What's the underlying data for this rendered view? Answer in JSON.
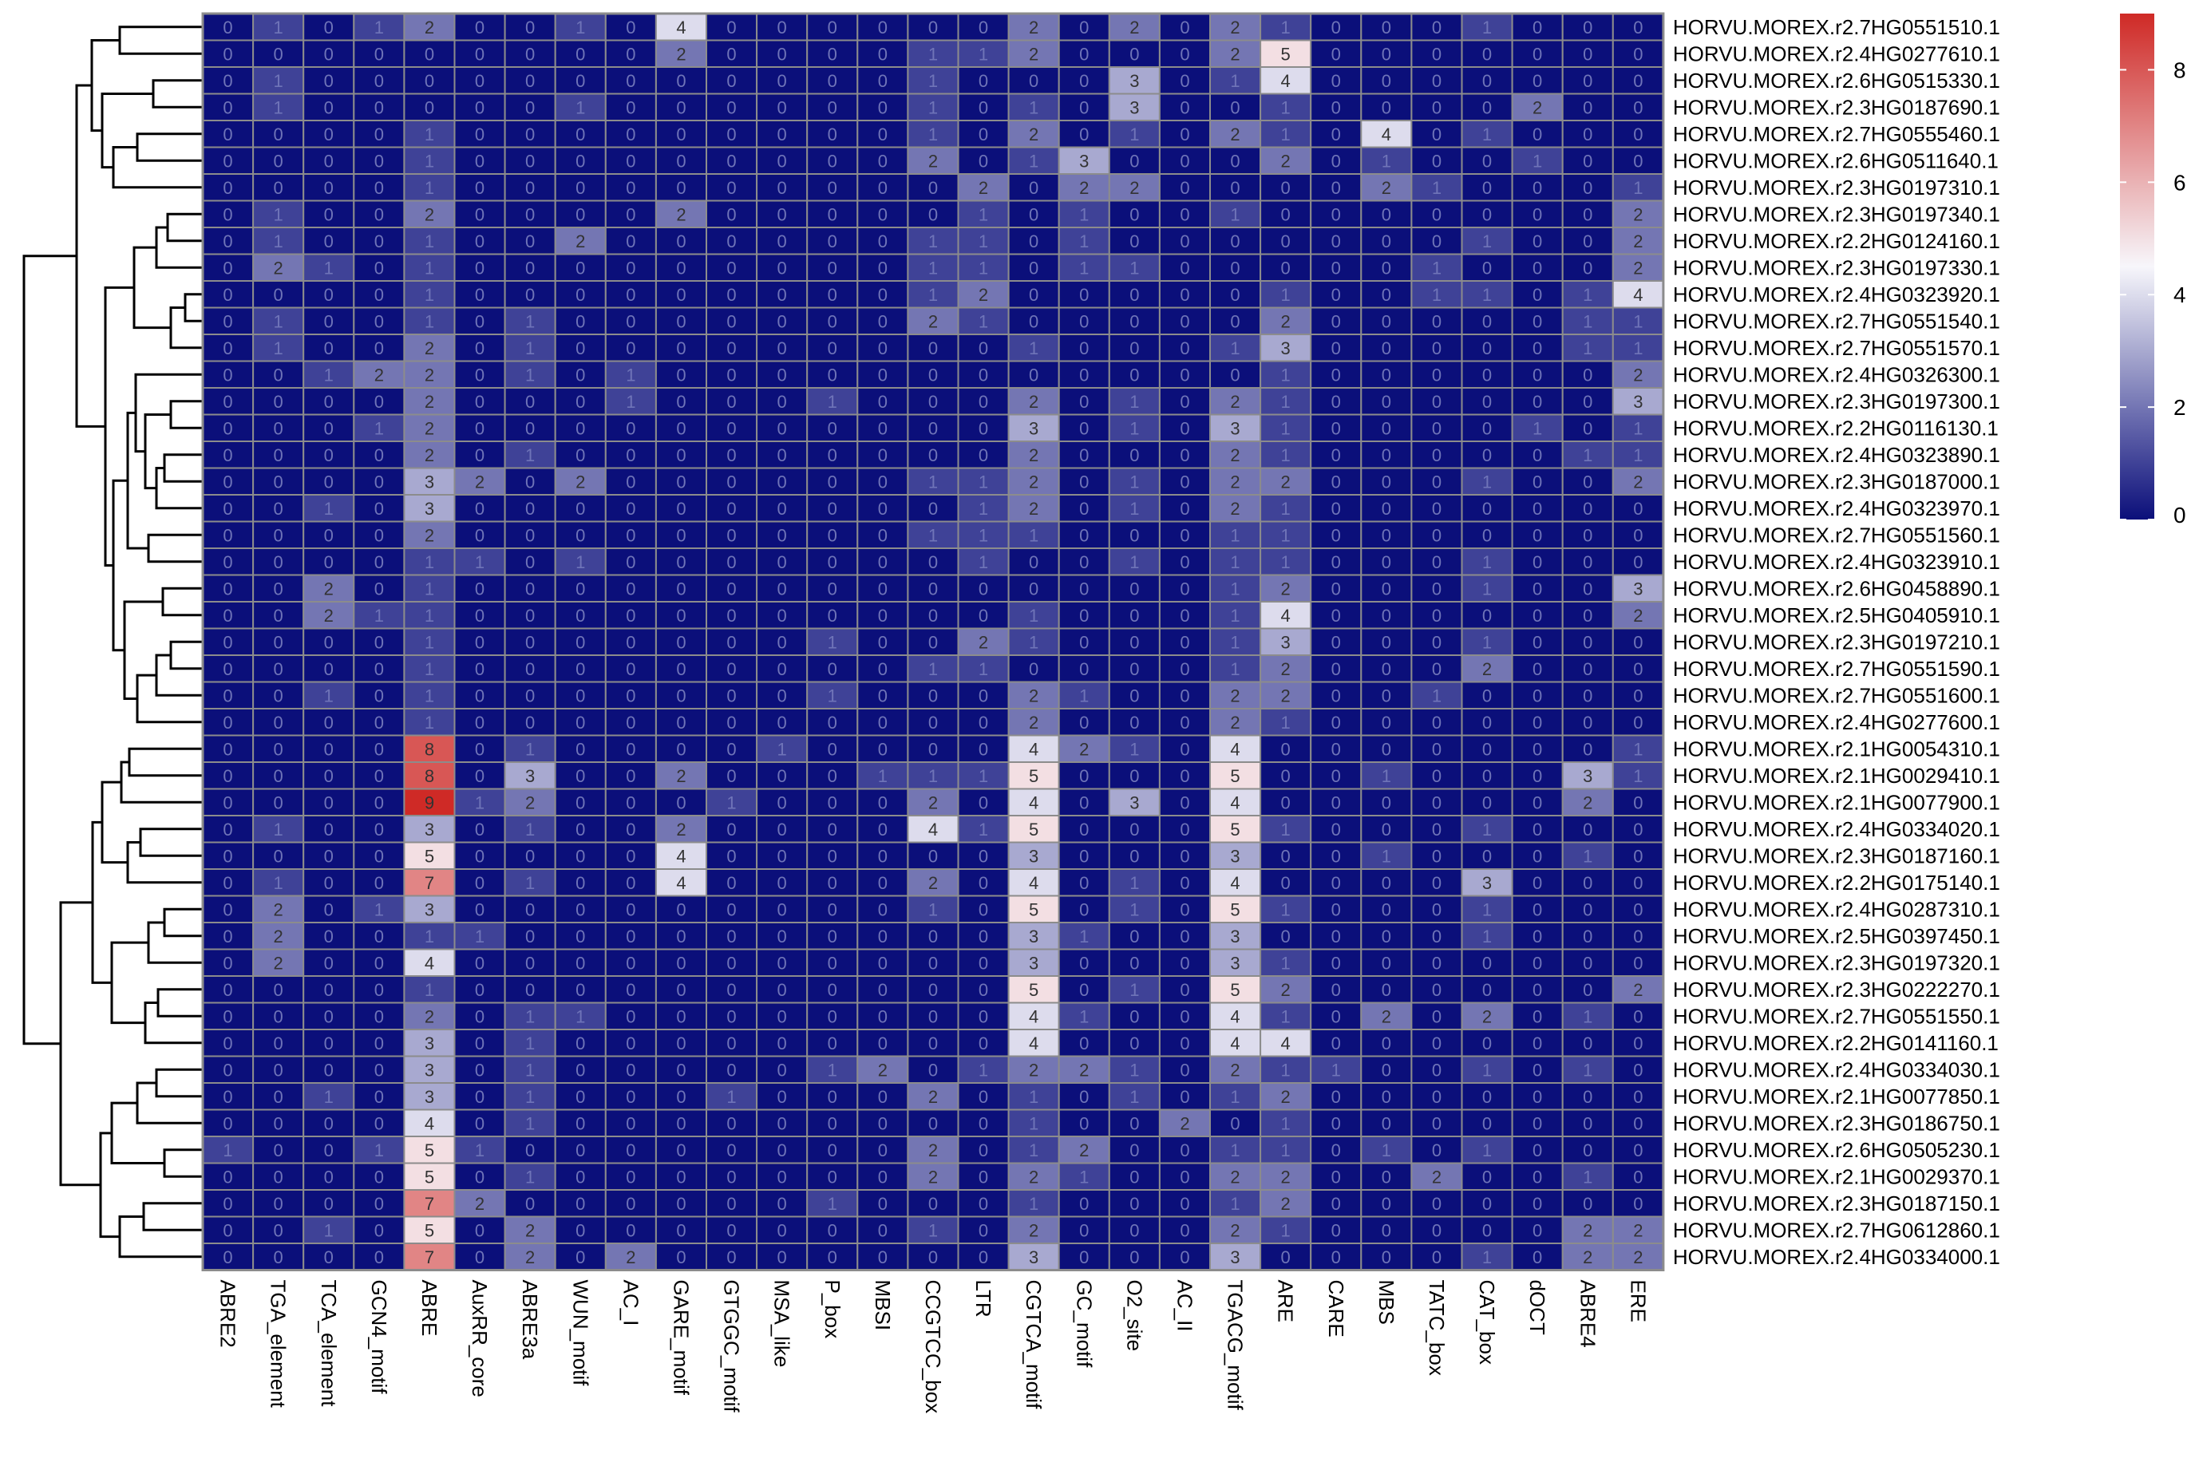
{
  "chart_data": {
    "type": "heatmap",
    "title": "",
    "xlabel": "",
    "ylabel": "",
    "columns": [
      "ABRE2",
      "TGA_element",
      "TCA_element",
      "GCN4_motif",
      "ABRE",
      "AuxRR_core",
      "ABRE3a",
      "WUN_motif",
      "AC_I",
      "GARE_motif",
      "GTGGC_motif",
      "MSA_like",
      "P_box",
      "MBSI",
      "CCGTCC_box",
      "LTR",
      "CGTCA_motif",
      "GC_motif",
      "O2_site",
      "AC_II",
      "TGACG_motif",
      "ARE",
      "CARE",
      "MBS",
      "TATC_box",
      "CAT_box",
      "dOCT",
      "ABRE4",
      "ERE"
    ],
    "rows": [
      "HORVU.MOREX.r2.7HG0551510.1",
      "HORVU.MOREX.r2.4HG0277610.1",
      "HORVU.MOREX.r2.6HG0515330.1",
      "HORVU.MOREX.r2.3HG0187690.1",
      "HORVU.MOREX.r2.7HG0555460.1",
      "HORVU.MOREX.r2.6HG0511640.1",
      "HORVU.MOREX.r2.3HG0197310.1",
      "HORVU.MOREX.r2.3HG0197340.1",
      "HORVU.MOREX.r2.2HG0124160.1",
      "HORVU.MOREX.r2.3HG0197330.1",
      "HORVU.MOREX.r2.4HG0323920.1",
      "HORVU.MOREX.r2.7HG0551540.1",
      "HORVU.MOREX.r2.7HG0551570.1",
      "HORVU.MOREX.r2.4HG0326300.1",
      "HORVU.MOREX.r2.3HG0197300.1",
      "HORVU.MOREX.r2.2HG0116130.1",
      "HORVU.MOREX.r2.4HG0323890.1",
      "HORVU.MOREX.r2.3HG0187000.1",
      "HORVU.MOREX.r2.4HG0323970.1",
      "HORVU.MOREX.r2.7HG0551560.1",
      "HORVU.MOREX.r2.4HG0323910.1",
      "HORVU.MOREX.r2.6HG0458890.1",
      "HORVU.MOREX.r2.5HG0405910.1",
      "HORVU.MOREX.r2.3HG0197210.1",
      "HORVU.MOREX.r2.7HG0551590.1",
      "HORVU.MOREX.r2.7HG0551600.1",
      "HORVU.MOREX.r2.4HG0277600.1",
      "HORVU.MOREX.r2.1HG0054310.1",
      "HORVU.MOREX.r2.1HG0029410.1",
      "HORVU.MOREX.r2.1HG0077900.1",
      "HORVU.MOREX.r2.4HG0334020.1",
      "HORVU.MOREX.r2.3HG0187160.1",
      "HORVU.MOREX.r2.2HG0175140.1",
      "HORVU.MOREX.r2.4HG0287310.1",
      "HORVU.MOREX.r2.5HG0397450.1",
      "HORVU.MOREX.r2.3HG0197320.1",
      "HORVU.MOREX.r2.3HG0222270.1",
      "HORVU.MOREX.r2.7HG0551550.1",
      "HORVU.MOREX.r2.2HG0141160.1",
      "HORVU.MOREX.r2.4HG0334030.1",
      "HORVU.MOREX.r2.1HG0077850.1",
      "HORVU.MOREX.r2.3HG0186750.1",
      "HORVU.MOREX.r2.6HG0505230.1",
      "HORVU.MOREX.r2.1HG0029370.1",
      "HORVU.MOREX.r2.3HG0187150.1",
      "HORVU.MOREX.r2.7HG0612860.1",
      "HORVU.MOREX.r2.4HG0334000.1"
    ],
    "values": [
      [
        0,
        1,
        0,
        1,
        2,
        0,
        0,
        1,
        0,
        4,
        0,
        0,
        0,
        0,
        0,
        0,
        2,
        0,
        2,
        0,
        2,
        1,
        0,
        0,
        0,
        1,
        0,
        0,
        0
      ],
      [
        0,
        0,
        0,
        0,
        0,
        0,
        0,
        0,
        0,
        2,
        0,
        0,
        0,
        0,
        1,
        1,
        2,
        0,
        0,
        0,
        2,
        5,
        0,
        0,
        0,
        0,
        0,
        0,
        0
      ],
      [
        0,
        1,
        0,
        0,
        0,
        0,
        0,
        0,
        0,
        0,
        0,
        0,
        0,
        0,
        1,
        0,
        0,
        0,
        3,
        0,
        1,
        4,
        0,
        0,
        0,
        0,
        0,
        0,
        0
      ],
      [
        0,
        1,
        0,
        0,
        0,
        0,
        0,
        1,
        0,
        0,
        0,
        0,
        0,
        0,
        1,
        0,
        1,
        0,
        3,
        0,
        0,
        1,
        0,
        0,
        0,
        0,
        2,
        0,
        0
      ],
      [
        0,
        0,
        0,
        0,
        1,
        0,
        0,
        0,
        0,
        0,
        0,
        0,
        0,
        0,
        1,
        0,
        2,
        0,
        1,
        0,
        2,
        1,
        0,
        4,
        0,
        1,
        0,
        0,
        0
      ],
      [
        0,
        0,
        0,
        0,
        1,
        0,
        0,
        0,
        0,
        0,
        0,
        0,
        0,
        0,
        2,
        0,
        1,
        3,
        0,
        0,
        0,
        2,
        0,
        1,
        0,
        0,
        1,
        0,
        0
      ],
      [
        0,
        0,
        0,
        0,
        1,
        0,
        0,
        0,
        0,
        0,
        0,
        0,
        0,
        0,
        0,
        2,
        0,
        2,
        2,
        0,
        0,
        0,
        0,
        2,
        1,
        0,
        0,
        0,
        1
      ],
      [
        0,
        1,
        0,
        0,
        2,
        0,
        0,
        0,
        0,
        2,
        0,
        0,
        0,
        0,
        0,
        1,
        0,
        1,
        0,
        0,
        1,
        0,
        0,
        0,
        0,
        0,
        0,
        0,
        2
      ],
      [
        0,
        1,
        0,
        0,
        1,
        0,
        0,
        2,
        0,
        0,
        0,
        0,
        0,
        0,
        1,
        1,
        0,
        1,
        0,
        0,
        0,
        0,
        0,
        0,
        0,
        1,
        0,
        0,
        2
      ],
      [
        0,
        2,
        1,
        0,
        1,
        0,
        0,
        0,
        0,
        0,
        0,
        0,
        0,
        0,
        1,
        1,
        0,
        1,
        1,
        0,
        0,
        0,
        0,
        0,
        1,
        0,
        0,
        0,
        2
      ],
      [
        0,
        0,
        0,
        0,
        1,
        0,
        0,
        0,
        0,
        0,
        0,
        0,
        0,
        0,
        1,
        2,
        0,
        0,
        0,
        0,
        0,
        1,
        0,
        0,
        1,
        1,
        0,
        1,
        4
      ],
      [
        0,
        1,
        0,
        0,
        1,
        0,
        1,
        0,
        0,
        0,
        0,
        0,
        0,
        0,
        2,
        1,
        0,
        0,
        0,
        0,
        0,
        2,
        0,
        0,
        0,
        0,
        0,
        1,
        1
      ],
      [
        0,
        1,
        0,
        0,
        2,
        0,
        1,
        0,
        0,
        0,
        0,
        0,
        0,
        0,
        0,
        0,
        1,
        0,
        0,
        0,
        1,
        3,
        0,
        0,
        0,
        0,
        0,
        1,
        1
      ],
      [
        0,
        0,
        1,
        2,
        2,
        0,
        1,
        0,
        1,
        0,
        0,
        0,
        0,
        0,
        0,
        0,
        0,
        0,
        0,
        0,
        0,
        1,
        0,
        0,
        0,
        0,
        0,
        0,
        2
      ],
      [
        0,
        0,
        0,
        0,
        2,
        0,
        0,
        0,
        1,
        0,
        0,
        0,
        1,
        0,
        0,
        0,
        2,
        0,
        1,
        0,
        2,
        1,
        0,
        0,
        0,
        0,
        0,
        0,
        3
      ],
      [
        0,
        0,
        0,
        1,
        2,
        0,
        0,
        0,
        0,
        0,
        0,
        0,
        0,
        0,
        0,
        0,
        3,
        0,
        1,
        0,
        3,
        1,
        0,
        0,
        0,
        0,
        1,
        0,
        1
      ],
      [
        0,
        0,
        0,
        0,
        2,
        0,
        1,
        0,
        0,
        0,
        0,
        0,
        0,
        0,
        0,
        0,
        2,
        0,
        0,
        0,
        2,
        1,
        0,
        0,
        0,
        0,
        0,
        1,
        1
      ],
      [
        0,
        0,
        0,
        0,
        3,
        2,
        0,
        2,
        0,
        0,
        0,
        0,
        0,
        0,
        1,
        1,
        2,
        0,
        1,
        0,
        2,
        2,
        0,
        0,
        0,
        1,
        0,
        0,
        2
      ],
      [
        0,
        0,
        1,
        0,
        3,
        0,
        0,
        0,
        0,
        0,
        0,
        0,
        0,
        0,
        0,
        1,
        2,
        0,
        1,
        0,
        2,
        1,
        0,
        0,
        0,
        0,
        0,
        0,
        0
      ],
      [
        0,
        0,
        0,
        0,
        2,
        0,
        0,
        0,
        0,
        0,
        0,
        0,
        0,
        0,
        1,
        1,
        1,
        0,
        0,
        0,
        1,
        1,
        0,
        0,
        0,
        0,
        0,
        0,
        0
      ],
      [
        0,
        0,
        0,
        0,
        1,
        1,
        0,
        1,
        0,
        0,
        0,
        0,
        0,
        0,
        0,
        1,
        0,
        0,
        1,
        0,
        1,
        1,
        0,
        0,
        0,
        1,
        0,
        0,
        0
      ],
      [
        0,
        0,
        2,
        0,
        1,
        0,
        0,
        0,
        0,
        0,
        0,
        0,
        0,
        0,
        0,
        0,
        0,
        0,
        0,
        0,
        1,
        2,
        0,
        0,
        0,
        1,
        0,
        0,
        3
      ],
      [
        0,
        0,
        2,
        1,
        1,
        0,
        0,
        0,
        0,
        0,
        0,
        0,
        0,
        0,
        0,
        0,
        1,
        0,
        0,
        0,
        1,
        4,
        0,
        0,
        0,
        0,
        0,
        0,
        2
      ],
      [
        0,
        0,
        0,
        0,
        1,
        0,
        0,
        0,
        0,
        0,
        0,
        0,
        1,
        0,
        0,
        2,
        1,
        0,
        0,
        0,
        1,
        3,
        0,
        0,
        0,
        1,
        0,
        0,
        0
      ],
      [
        0,
        0,
        0,
        0,
        1,
        0,
        0,
        0,
        0,
        0,
        0,
        0,
        0,
        0,
        1,
        1,
        0,
        0,
        0,
        0,
        1,
        2,
        0,
        0,
        0,
        2,
        0,
        0,
        0
      ],
      [
        0,
        0,
        1,
        0,
        1,
        0,
        0,
        0,
        0,
        0,
        0,
        0,
        1,
        0,
        0,
        0,
        2,
        1,
        0,
        0,
        2,
        2,
        0,
        0,
        1,
        0,
        0,
        0,
        0
      ],
      [
        0,
        0,
        0,
        0,
        1,
        0,
        0,
        0,
        0,
        0,
        0,
        0,
        0,
        0,
        0,
        0,
        2,
        0,
        0,
        0,
        2,
        1,
        0,
        0,
        0,
        0,
        0,
        0,
        0
      ],
      [
        0,
        0,
        0,
        0,
        8,
        0,
        1,
        0,
        0,
        0,
        0,
        1,
        0,
        0,
        0,
        0,
        4,
        2,
        1,
        0,
        4,
        0,
        0,
        0,
        0,
        0,
        0,
        0,
        1
      ],
      [
        0,
        0,
        0,
        0,
        8,
        0,
        3,
        0,
        0,
        2,
        0,
        0,
        0,
        1,
        1,
        1,
        5,
        0,
        0,
        0,
        5,
        0,
        0,
        1,
        0,
        0,
        0,
        3,
        1
      ],
      [
        0,
        0,
        0,
        0,
        9,
        1,
        2,
        0,
        0,
        0,
        1,
        0,
        0,
        0,
        2,
        0,
        4,
        0,
        3,
        0,
        4,
        0,
        0,
        0,
        0,
        0,
        0,
        2,
        0
      ],
      [
        0,
        1,
        0,
        0,
        3,
        0,
        1,
        0,
        0,
        2,
        0,
        0,
        0,
        0,
        4,
        1,
        5,
        0,
        0,
        0,
        5,
        1,
        0,
        0,
        0,
        1,
        0,
        0,
        0
      ],
      [
        0,
        0,
        0,
        0,
        5,
        0,
        0,
        0,
        0,
        4,
        0,
        0,
        0,
        0,
        0,
        0,
        3,
        0,
        0,
        0,
        3,
        0,
        0,
        1,
        0,
        0,
        0,
        1,
        0
      ],
      [
        0,
        1,
        0,
        0,
        7,
        0,
        1,
        0,
        0,
        4,
        0,
        0,
        0,
        0,
        2,
        0,
        4,
        0,
        1,
        0,
        4,
        0,
        0,
        0,
        0,
        3,
        0,
        0,
        0
      ],
      [
        0,
        2,
        0,
        1,
        3,
        0,
        0,
        0,
        0,
        0,
        0,
        0,
        0,
        0,
        1,
        0,
        5,
        0,
        1,
        0,
        5,
        1,
        0,
        0,
        0,
        1,
        0,
        0,
        0
      ],
      [
        0,
        2,
        0,
        0,
        1,
        1,
        0,
        0,
        0,
        0,
        0,
        0,
        0,
        0,
        0,
        0,
        3,
        1,
        0,
        0,
        3,
        0,
        0,
        0,
        0,
        1,
        0,
        0,
        0
      ],
      [
        0,
        2,
        0,
        0,
        4,
        0,
        0,
        0,
        0,
        0,
        0,
        0,
        0,
        0,
        0,
        0,
        3,
        0,
        0,
        0,
        3,
        1,
        0,
        0,
        0,
        0,
        0,
        0,
        0
      ],
      [
        0,
        0,
        0,
        0,
        1,
        0,
        0,
        0,
        0,
        0,
        0,
        0,
        0,
        0,
        0,
        0,
        5,
        0,
        1,
        0,
        5,
        2,
        0,
        0,
        0,
        0,
        0,
        0,
        2
      ],
      [
        0,
        0,
        0,
        0,
        2,
        0,
        1,
        1,
        0,
        0,
        0,
        0,
        0,
        0,
        0,
        0,
        4,
        1,
        0,
        0,
        4,
        1,
        0,
        2,
        0,
        2,
        0,
        1,
        0
      ],
      [
        0,
        0,
        0,
        0,
        3,
        0,
        1,
        0,
        0,
        0,
        0,
        0,
        0,
        0,
        0,
        0,
        4,
        0,
        0,
        0,
        4,
        4,
        0,
        0,
        0,
        0,
        0,
        0,
        0
      ],
      [
        0,
        0,
        0,
        0,
        3,
        0,
        1,
        0,
        0,
        0,
        0,
        0,
        1,
        2,
        0,
        1,
        2,
        2,
        1,
        0,
        2,
        1,
        1,
        0,
        0,
        1,
        0,
        1,
        0
      ],
      [
        0,
        0,
        1,
        0,
        3,
        0,
        1,
        0,
        0,
        0,
        1,
        0,
        0,
        0,
        2,
        0,
        1,
        0,
        1,
        0,
        1,
        2,
        0,
        0,
        0,
        0,
        0,
        0,
        0
      ],
      [
        0,
        0,
        0,
        0,
        4,
        0,
        1,
        0,
        0,
        0,
        0,
        0,
        0,
        0,
        0,
        0,
        1,
        0,
        0,
        2,
        0,
        1,
        0,
        0,
        0,
        0,
        0,
        0,
        0
      ],
      [
        1,
        0,
        0,
        1,
        5,
        1,
        0,
        0,
        0,
        0,
        0,
        0,
        0,
        0,
        2,
        0,
        1,
        2,
        0,
        0,
        1,
        1,
        0,
        1,
        0,
        1,
        0,
        0,
        0
      ],
      [
        0,
        0,
        0,
        0,
        5,
        0,
        1,
        0,
        0,
        0,
        0,
        0,
        0,
        0,
        2,
        0,
        2,
        1,
        0,
        0,
        2,
        2,
        0,
        0,
        2,
        0,
        0,
        1,
        0
      ],
      [
        0,
        0,
        0,
        0,
        7,
        2,
        0,
        0,
        0,
        0,
        0,
        0,
        1,
        0,
        0,
        0,
        1,
        0,
        0,
        0,
        1,
        2,
        0,
        0,
        0,
        0,
        0,
        0,
        0
      ],
      [
        0,
        0,
        1,
        0,
        5,
        0,
        2,
        0,
        0,
        0,
        0,
        0,
        0,
        0,
        1,
        0,
        2,
        0,
        0,
        0,
        2,
        1,
        0,
        0,
        0,
        0,
        0,
        2,
        2
      ],
      [
        0,
        0,
        0,
        0,
        7,
        0,
        2,
        0,
        2,
        0,
        0,
        0,
        0,
        0,
        0,
        0,
        3,
        0,
        0,
        0,
        3,
        0,
        0,
        0,
        0,
        1,
        0,
        2,
        2
      ]
    ],
    "color_scale": {
      "min": 0,
      "max": 9,
      "low": "#0b0f7a",
      "mid": "#f7f6fb",
      "high": "#cf2a26",
      "mid_value": 4.5
    },
    "legend_ticks": [
      0,
      2,
      4,
      6,
      8
    ],
    "legend_placement": "top-right",
    "cell_labels": true,
    "dendrogram": "rows"
  },
  "colors": {
    "cell_border": "#8c8c8c",
    "grid_outer": "#8c8c8c",
    "label_dark_cell": "#6f74b8",
    "label_light_cell": "#333333"
  }
}
